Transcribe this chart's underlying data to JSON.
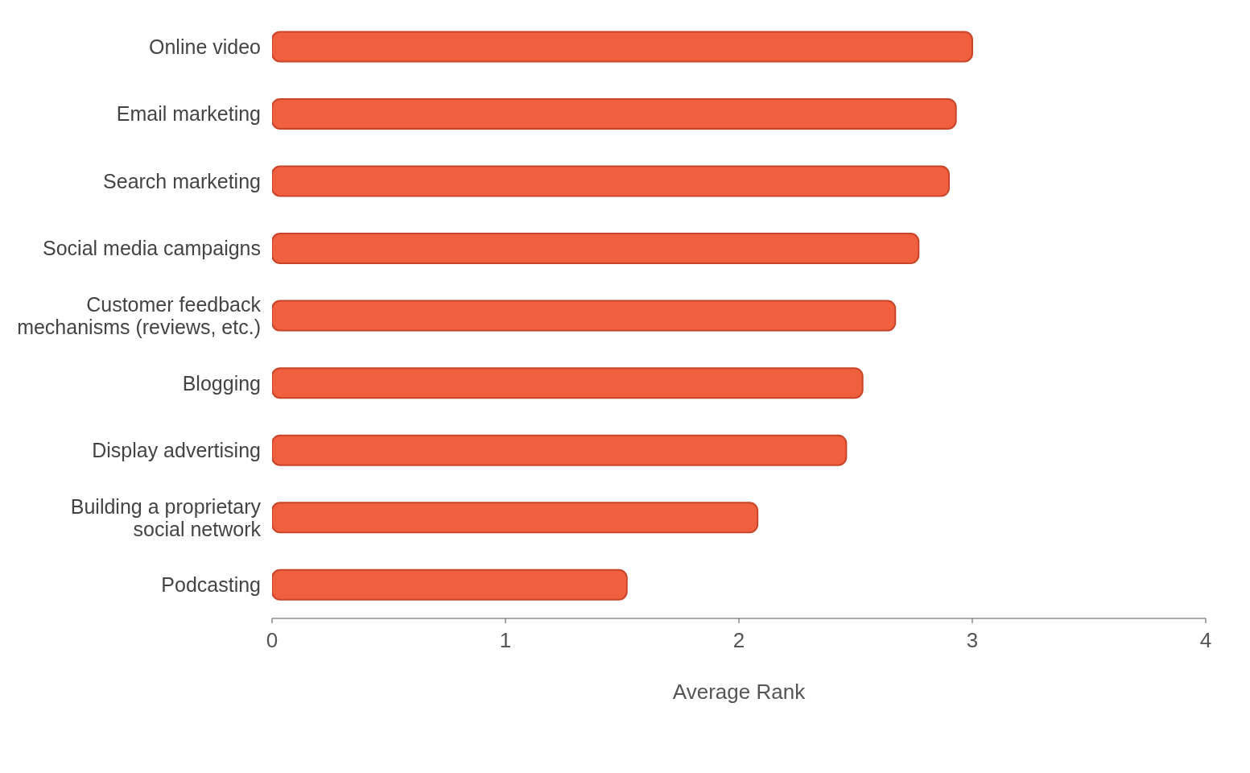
{
  "chart_data": {
    "type": "bar",
    "orientation": "horizontal",
    "xlabel": "Average Rank",
    "categories": [
      "Online video",
      "Email marketing",
      "Search marketing",
      "Social media campaigns",
      "Customer feedback mechanisms (reviews, etc.)",
      "Blogging",
      "Display advertising",
      "Building a proprietary social network",
      "Podcasting"
    ],
    "values": [
      3.0,
      2.93,
      2.9,
      2.77,
      2.67,
      2.53,
      2.46,
      2.08,
      1.52
    ],
    "color": "#f0603e",
    "xlim": [
      0,
      4
    ],
    "xticks": [
      0,
      1,
      2,
      3,
      4
    ],
    "grid": false,
    "legend": false
  }
}
